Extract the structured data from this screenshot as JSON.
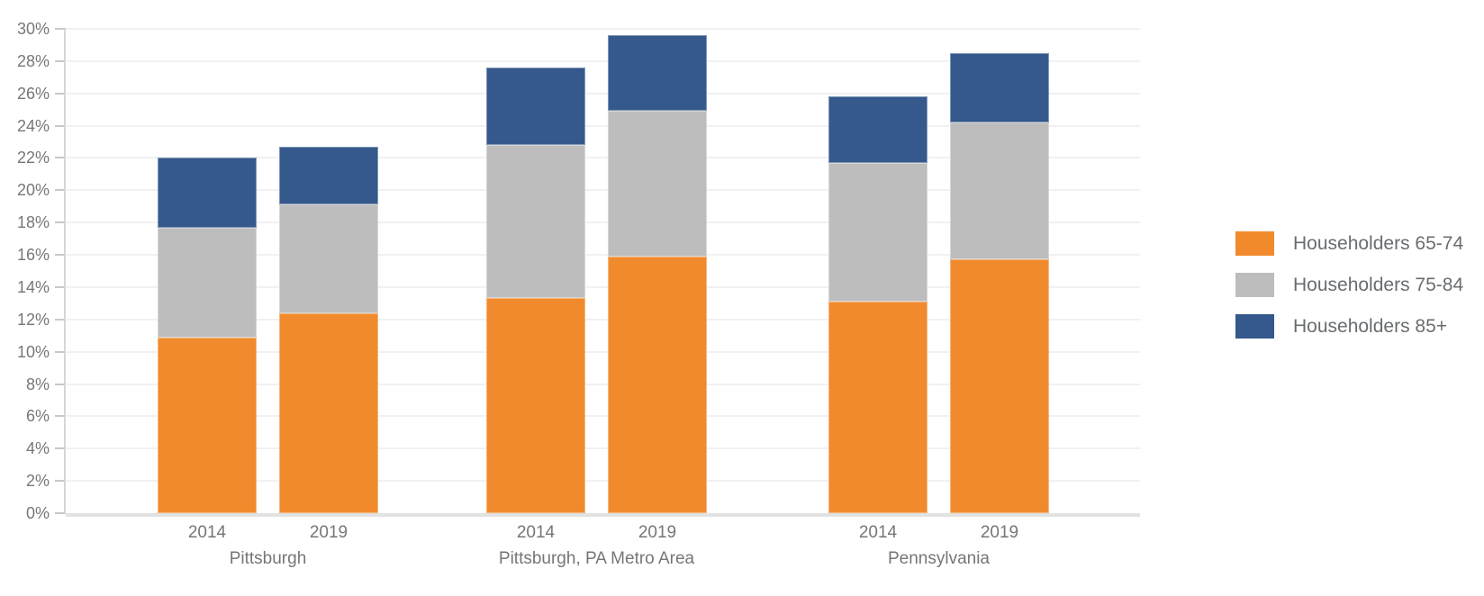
{
  "chart_data": {
    "type": "bar",
    "stacked": true,
    "title": "",
    "xlabel": "",
    "ylabel": "",
    "ylim": [
      0,
      30
    ],
    "y_tick_step": 2,
    "y_tick_labels": [
      "0%",
      "2%",
      "4%",
      "6%",
      "8%",
      "10%",
      "12%",
      "14%",
      "16%",
      "18%",
      "20%",
      "22%",
      "24%",
      "26%",
      "28%",
      "30%"
    ],
    "grid": "horizontal",
    "legend_position": "right",
    "categories": [
      "Pittsburgh",
      "Pittsburgh, PA Metro Area",
      "Pennsylvania"
    ],
    "bar_labels": [
      "2014",
      "2019",
      "2014",
      "2019",
      "2014",
      "2019"
    ],
    "series": [
      {
        "name": "Householders 65-74",
        "color": "#F18A2D",
        "values": [
          10.9,
          12.4,
          13.3,
          15.9,
          13.1,
          15.7
        ]
      },
      {
        "name": "Householders 75-84",
        "color": "#BDBDBD",
        "values": [
          6.8,
          6.7,
          9.5,
          9.0,
          8.6,
          8.5
        ]
      },
      {
        "name": "Householders 85+",
        "color": "#35598C",
        "values": [
          4.3,
          3.6,
          4.8,
          4.7,
          4.1,
          4.3
        ]
      }
    ],
    "stack_totals": [
      22.0,
      22.7,
      27.6,
      29.6,
      25.8,
      28.5
    ]
  },
  "colors": {
    "grid": "#f1f1f1",
    "axis_line": "#d6d6d6",
    "baseline": "#e2e2e2",
    "tick": "#c9c9c9",
    "axis_text": "#767778",
    "legend_text": "#696d70"
  }
}
